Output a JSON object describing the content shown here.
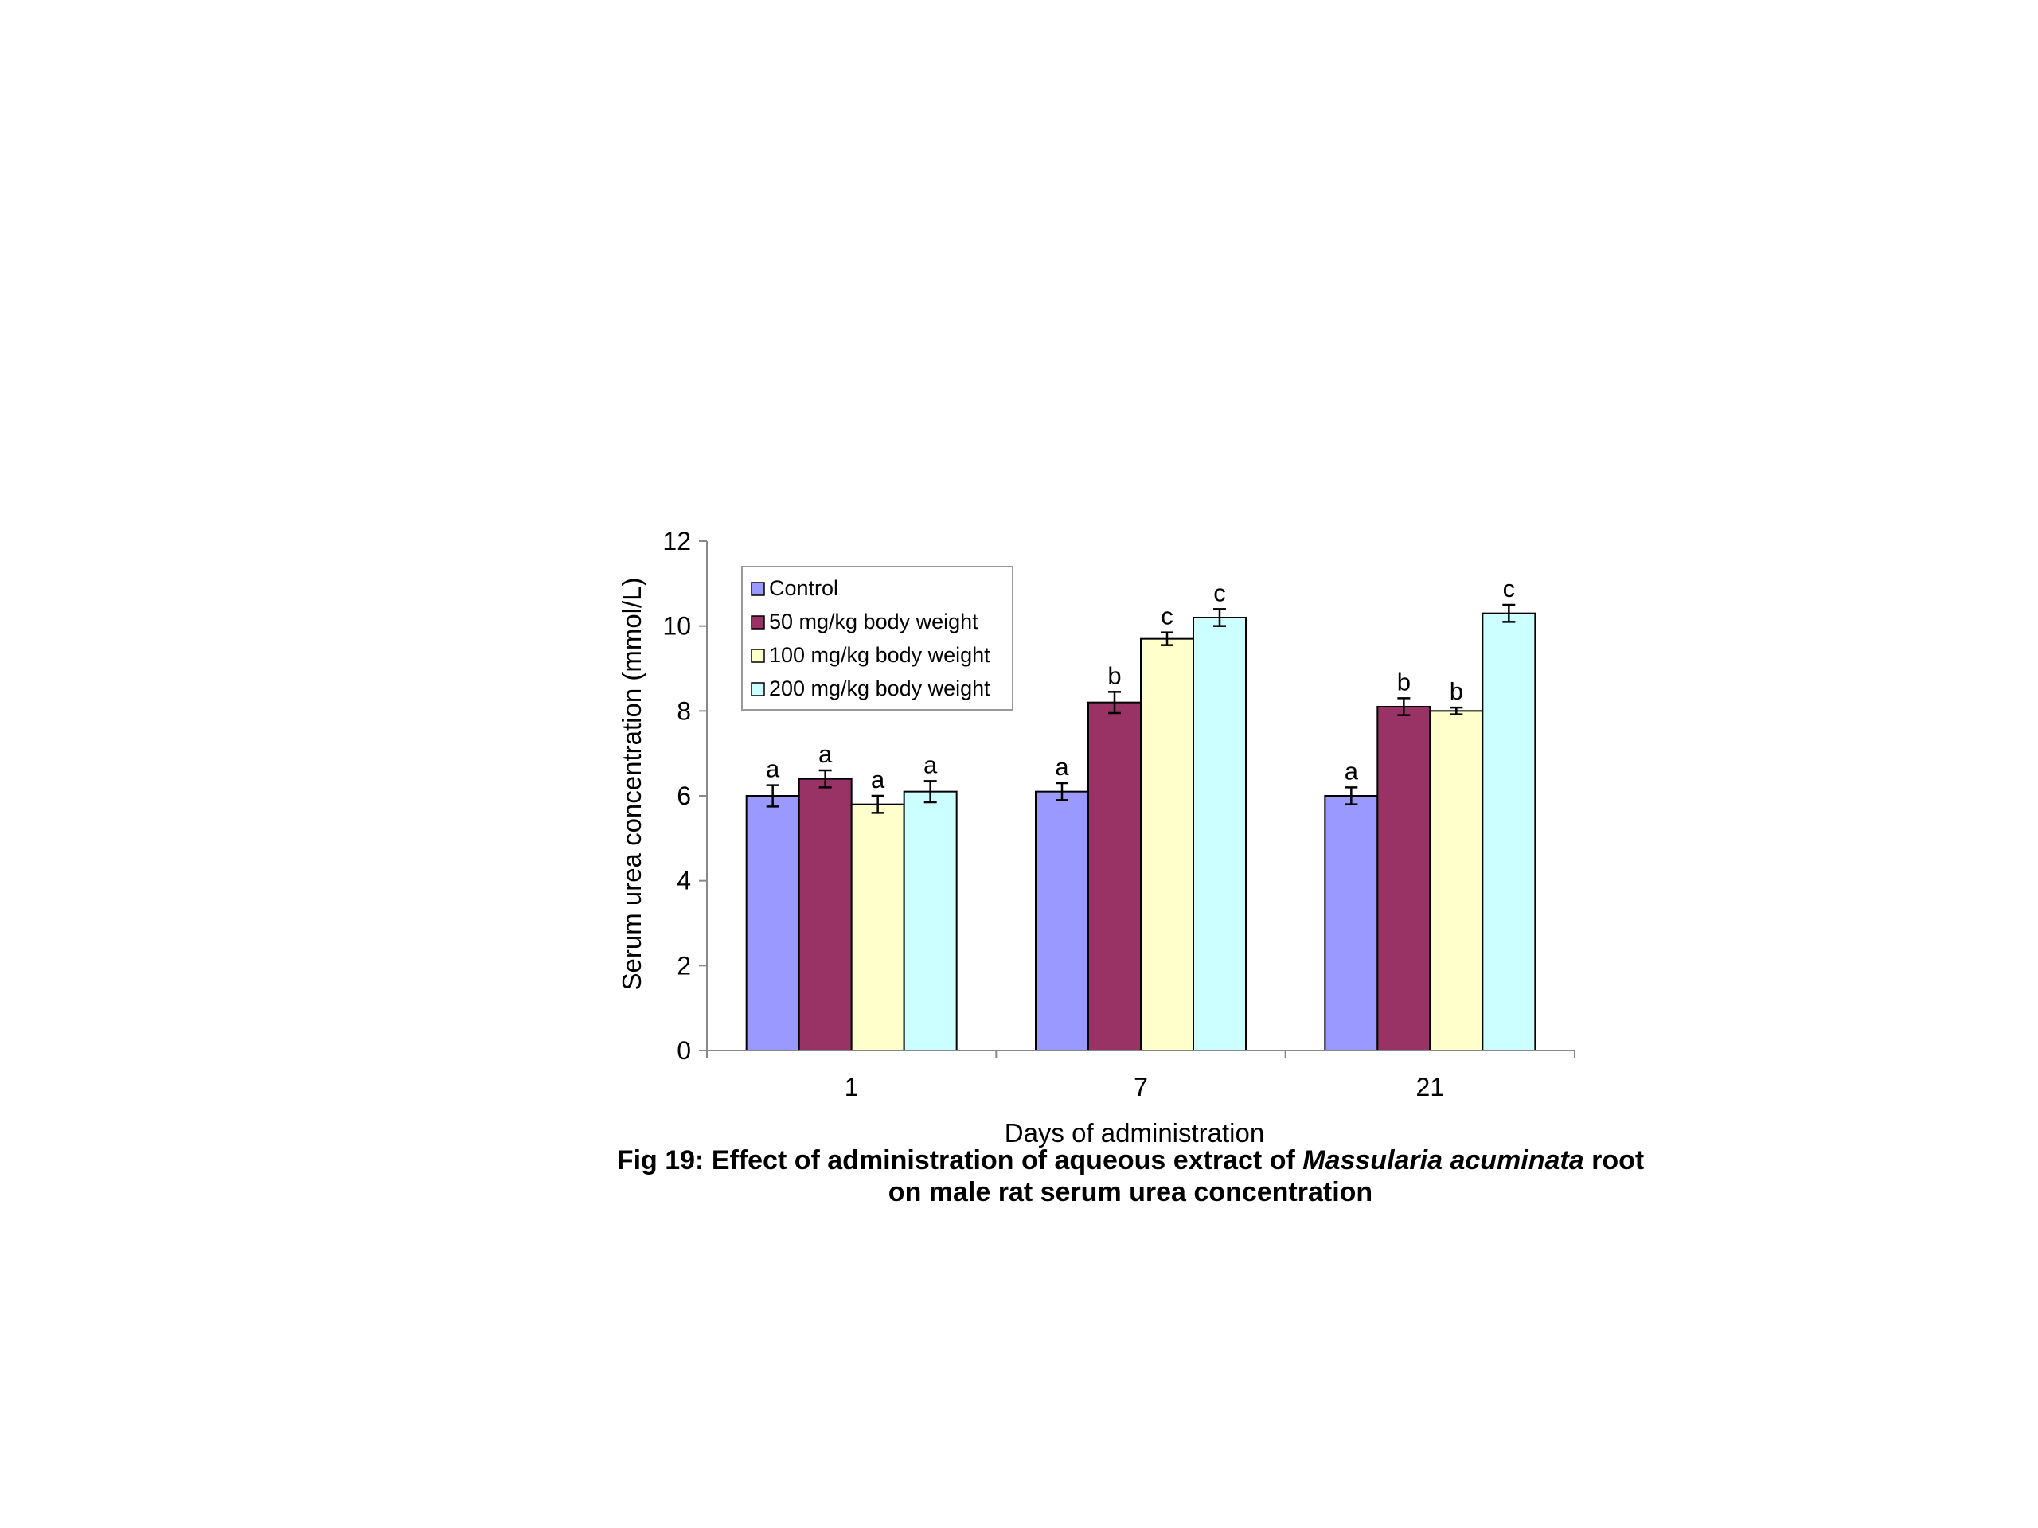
{
  "chart_data": {
    "type": "bar",
    "categories": [
      "1",
      "7",
      "21"
    ],
    "xlabel": "Days of administration",
    "ylabel": "Serum urea concentration (mmol/L)",
    "ylim": [
      0,
      12
    ],
    "yticks": [
      "0",
      "2",
      "4",
      "6",
      "8",
      "10",
      "12"
    ],
    "grid": false,
    "legend_position": "top-left",
    "series": [
      {
        "name": "Control",
        "color": "#9999ff",
        "values": [
          6.0,
          6.1,
          6.0
        ],
        "errors": [
          0.25,
          0.2,
          0.2
        ],
        "labels": [
          "a",
          "a",
          "a"
        ]
      },
      {
        "name": "50 mg/kg body weight",
        "color": "#993366",
        "values": [
          6.4,
          8.2,
          8.1
        ],
        "errors": [
          0.2,
          0.25,
          0.2
        ],
        "labels": [
          "a",
          "b",
          "b"
        ]
      },
      {
        "name": "100 mg/kg body weight",
        "color": "#ffffcc",
        "values": [
          5.8,
          9.7,
          8.0
        ],
        "errors": [
          0.2,
          0.15,
          0.08
        ],
        "labels": [
          "a",
          "c",
          "b"
        ]
      },
      {
        "name": "200 mg/kg body weight",
        "color": "#ccffff",
        "values": [
          6.1,
          10.2,
          10.3
        ],
        "errors": [
          0.25,
          0.2,
          0.2
        ],
        "labels": [
          "a",
          "c",
          "c"
        ]
      }
    ]
  },
  "caption": {
    "line1_prefix": "Fig 19: Effect of administration of aqueous extract of ",
    "line1_italic": "Massularia acuminata",
    "line1_suffix": " root",
    "line2": "on male rat serum urea concentration"
  }
}
